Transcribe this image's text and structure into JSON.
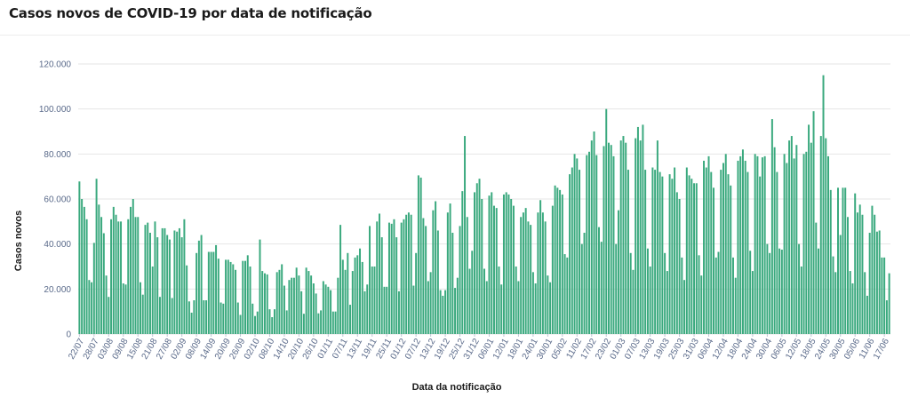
{
  "title": "Casos novos de COVID-19 por data de notificação",
  "colors": {
    "bar": "#3aa97e",
    "bar_edge": "#2f8f69",
    "grid": "#e6e6e6",
    "tick": "#5a6a8a",
    "text": "#1a1a1a"
  },
  "chart_data": {
    "type": "bar",
    "title": "Casos novos de COVID-19 por data de notificação",
    "xlabel": "Data da notificação",
    "ylabel": "Casos novos",
    "ylim": [
      0,
      120000
    ],
    "yticks": [
      0,
      20000,
      40000,
      60000,
      80000,
      100000,
      120000
    ],
    "ytick_labels": [
      "0",
      "20.000",
      "40.000",
      "60.000",
      "80.000",
      "100.000",
      "120.000"
    ],
    "grid": true,
    "legend": "none",
    "xtick_labels": [
      "22/07",
      "28/07",
      "03/08",
      "09/08",
      "15/08",
      "21/08",
      "27/08",
      "02/09",
      "08/09",
      "14/09",
      "20/09",
      "26/09",
      "02/10",
      "08/10",
      "14/10",
      "20/10",
      "26/10",
      "01/11",
      "07/11",
      "13/11",
      "19/11",
      "25/11",
      "01/12",
      "07/12",
      "13/12",
      "19/12",
      "25/12",
      "31/12",
      "06/01",
      "12/01",
      "18/01",
      "24/01",
      "30/01",
      "05/02",
      "11/02",
      "17/02",
      "23/02",
      "01/03",
      "07/03",
      "13/03",
      "19/03",
      "25/03",
      "31/03",
      "06/04",
      "12/04",
      "18/04",
      "24/04",
      "30/04",
      "06/05",
      "12/05",
      "18/05",
      "24/05",
      "30/05",
      "05/06",
      "11/06",
      "17/06",
      "23/06",
      "29/06",
      "05/07",
      "11/07",
      "17/07"
    ],
    "start_date": "2020-07-22",
    "values": [
      67800,
      60000,
      56500,
      51000,
      24000,
      23000,
      40500,
      69000,
      57500,
      52000,
      44800,
      26000,
      16500,
      51000,
      56500,
      53000,
      50000,
      50000,
      22500,
      22000,
      51000,
      56500,
      60000,
      52000,
      52000,
      23000,
      17500,
      48500,
      49500,
      45000,
      30000,
      50000,
      43000,
      16500,
      47000,
      47000,
      44000,
      42000,
      16000,
      46000,
      45500,
      47000,
      43000,
      51000,
      30500,
      14500,
      9500,
      15000,
      36000,
      41500,
      44000,
      15000,
      15000,
      36500,
      36500,
      36500,
      39500,
      33500,
      14000,
      13500,
      33000,
      33000,
      32000,
      31000,
      28500,
      14000,
      8500,
      32500,
      32500,
      35000,
      30000,
      13500,
      8000,
      10000,
      42000,
      28000,
      27000,
      26500,
      11000,
      7500,
      11000,
      27500,
      28500,
      31000,
      21500,
      10500,
      24000,
      25000,
      25000,
      29500,
      26000,
      19000,
      9000,
      29500,
      28000,
      26000,
      22500,
      18000,
      9200,
      10500,
      23500,
      22000,
      21000,
      19500,
      10000,
      10000,
      25000,
      48500,
      33000,
      28500,
      36000,
      13000,
      28000,
      34000,
      35000,
      38000,
      32000,
      19000,
      22000,
      48000,
      30000,
      30000,
      50000,
      53500,
      43000,
      21000,
      21000,
      49500,
      49000,
      51000,
      43000,
      19000,
      49500,
      51000,
      53000,
      54000,
      53000,
      21500,
      36000,
      70500,
      69500,
      51500,
      48000,
      23500,
      27500,
      55000,
      59000,
      46000,
      19500,
      17000,
      19500,
      54000,
      58000,
      45000,
      20500,
      25000,
      48000,
      63500,
      88000,
      52000,
      29000,
      37000,
      63000,
      67000,
      69000,
      60000,
      29000,
      23500,
      61500,
      63000,
      57000,
      56000,
      30000,
      22000,
      62000,
      63000,
      62000,
      60000,
      57000,
      30000,
      23500,
      52000,
      54000,
      56000,
      50000,
      48500,
      27500,
      22500,
      54000,
      59500,
      54000,
      50000,
      26000,
      23000,
      57000,
      66000,
      65000,
      64000,
      62000,
      35500,
      34000,
      71000,
      74000,
      80000,
      78000,
      73000,
      40000,
      45000,
      79500,
      81000,
      86000,
      90000,
      79500,
      47500,
      41000,
      83500,
      100000,
      85000,
      84000,
      79000,
      40000,
      55000,
      86000,
      88000,
      85000,
      73000,
      36000,
      28500,
      87000,
      92000,
      86000,
      93000,
      73000,
      38000,
      30000,
      74000,
      73000,
      86000,
      72000,
      70000,
      36000,
      28000,
      71000,
      69000,
      74000,
      63000,
      60000,
      34000,
      24000,
      74000,
      70500,
      69000,
      67000,
      67000,
      35000,
      26000,
      77000,
      74000,
      79000,
      72000,
      65000,
      34000,
      36500,
      73000,
      76000,
      80000,
      71000,
      66000,
      34000,
      25000,
      77000,
      79000,
      82000,
      77000,
      72000,
      37000,
      28000,
      80000,
      79000,
      70000,
      78500,
      79000,
      40000,
      36000,
      95500,
      83000,
      72000,
      38000,
      37500,
      80000,
      76000,
      86000,
      88000,
      78000,
      84000,
      40000,
      30000,
      80000,
      81000,
      93000,
      85000,
      99000,
      49500,
      38000,
      88000,
      115000,
      87000,
      79000,
      64000,
      34500,
      27500,
      65000,
      44000,
      65000,
      65000,
      52000,
      28000,
      22500,
      62500,
      54000,
      57500,
      53000,
      27500,
      17000,
      45000,
      57000,
      53000,
      45500,
      46000,
      34000,
      34000,
      15000,
      27000
    ]
  }
}
